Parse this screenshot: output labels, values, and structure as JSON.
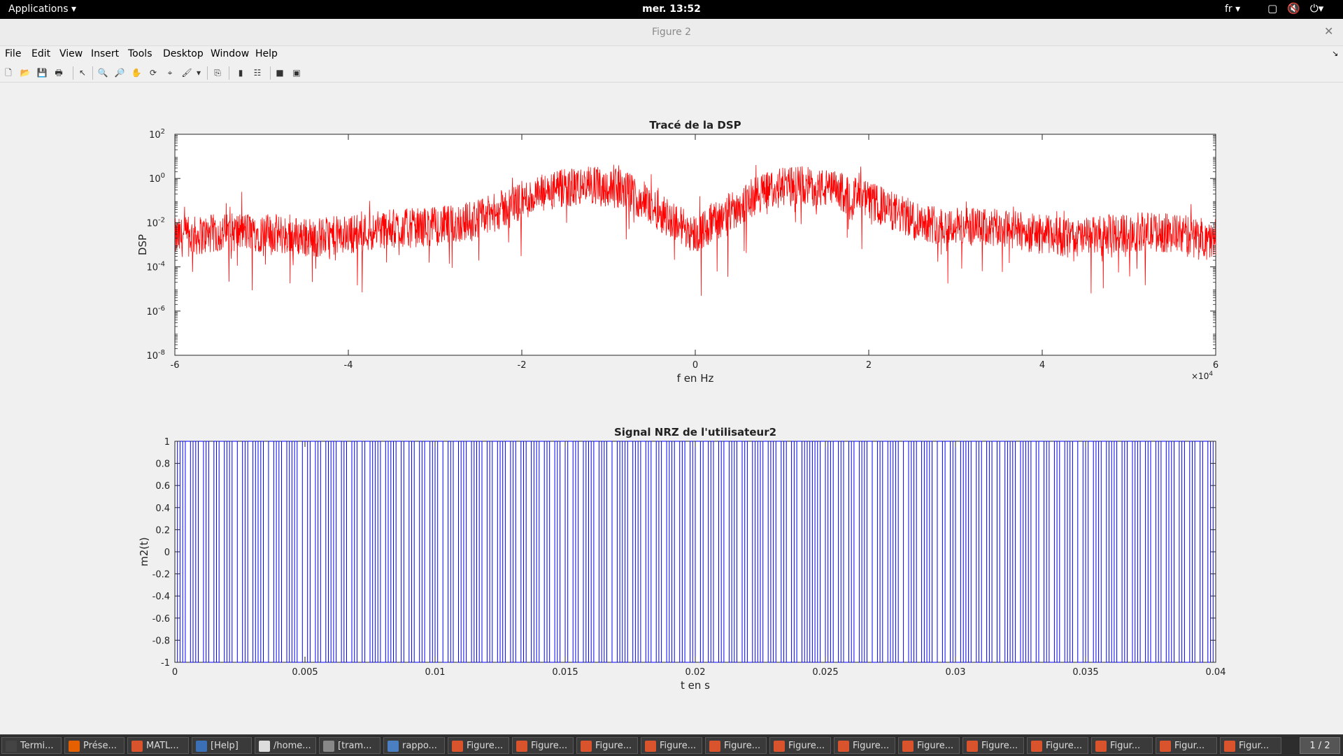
{
  "topbar": {
    "applications_label": "Applications",
    "clock": "mer. 13:52",
    "language": "fr"
  },
  "window": {
    "title": "Figure 2"
  },
  "menu": [
    "File",
    "Edit",
    "View",
    "Insert",
    "Tools",
    "Desktop",
    "Window",
    "Help"
  ],
  "toolbar_icons": [
    "new-figure-icon",
    "open-file-icon",
    "save-icon",
    "print-icon",
    "pointer-icon",
    "zoom-in-icon",
    "zoom-out-icon",
    "pan-icon",
    "rotate-icon",
    "data-cursor-icon",
    "brush-icon",
    "link-icon",
    "colorbar-icon",
    "legend-icon",
    "hide-plot-tools-icon",
    "show-plot-tools-icon"
  ],
  "chart_data": [
    {
      "type": "line",
      "title": "Tracé de la DSP",
      "xlabel": "f en Hz",
      "ylabel": "DSP",
      "xlim": [
        -60000,
        60000
      ],
      "ylim": [
        1e-08,
        100
      ],
      "yscale": "log",
      "x_exponent_label": "×10^4",
      "xticks": [
        -6,
        -4,
        -2,
        0,
        2,
        4,
        6
      ],
      "yticks": [
        "10^2",
        "10^0",
        "10^-2",
        "10^-4",
        "10^-6",
        "10^-8"
      ],
      "color": "#ff0000",
      "series": [
        {
          "x": [
            -60000,
            -56000,
            -52000,
            -48000,
            -44000,
            -40000,
            -36000,
            -32000,
            -28000,
            -24000,
            -20000,
            -16000,
            -12000,
            -8000,
            -4000,
            0,
            4000,
            8000,
            12000,
            16000,
            20000,
            24000,
            28000,
            32000,
            36000,
            40000,
            44000,
            48000,
            52000,
            56000,
            60000
          ],
          "values": [
            0.002,
            0.003,
            0.004,
            0.003,
            0.002,
            0.003,
            0.005,
            0.006,
            0.008,
            0.02,
            0.1,
            0.3,
            0.5,
            0.3,
            0.03,
            0.003,
            0.03,
            0.3,
            0.5,
            0.3,
            0.1,
            0.02,
            0.008,
            0.006,
            0.005,
            0.003,
            0.002,
            0.003,
            0.004,
            0.003,
            0.002
          ]
        }
      ]
    },
    {
      "type": "line",
      "title": "Signal NRZ de l'utilisateur2",
      "xlabel": "t en s",
      "ylabel": "m2(t)",
      "xlim": [
        0,
        0.04
      ],
      "ylim": [
        -1,
        1
      ],
      "xticks": [
        "0",
        "0.005",
        "0.01",
        "0.015",
        "0.02",
        "0.025",
        "0.03",
        "0.035",
        "0.04"
      ],
      "yticks": [
        "1",
        "0.8",
        "0.6",
        "0.4",
        "0.2",
        "0",
        "-0.2",
        "-0.4",
        "-0.6",
        "-0.8",
        "-1"
      ],
      "color": "#0000ff",
      "step": true,
      "bit_period": 0.0001,
      "series": [
        {
          "pattern_bits": "1010110101101001011010110010110101001101011010100110110100101011010010110110101001010110110100101101011001011010110101001011010110100101101011010010110110100101011010110010101101011010010110101101001011011010010110101101001010110101101001011010"
        }
      ]
    }
  ],
  "taskbar": {
    "items": [
      {
        "label": "Termi...",
        "icon": "terminal-icon",
        "color": "#444444"
      },
      {
        "label": "Prése...",
        "icon": "firefox-icon",
        "color": "#e66000"
      },
      {
        "label": "MATL...",
        "icon": "matlab-icon",
        "color": "#d9532c"
      },
      {
        "label": "[Help]",
        "icon": "help-icon",
        "color": "#3b6fb6"
      },
      {
        "label": "/home...",
        "icon": "editor-icon",
        "color": "#dddddd"
      },
      {
        "label": "[tram...",
        "icon": "file-manager-icon",
        "color": "#888888"
      },
      {
        "label": "rappo...",
        "icon": "document-icon",
        "color": "#4a7fc1"
      },
      {
        "label": "Figure...",
        "icon": "matlab-figure-icon",
        "color": "#d9532c"
      },
      {
        "label": "Figure...",
        "icon": "matlab-figure-icon",
        "color": "#d9532c"
      },
      {
        "label": "Figure...",
        "icon": "matlab-figure-icon",
        "color": "#d9532c"
      },
      {
        "label": "Figure...",
        "icon": "matlab-figure-icon",
        "color": "#d9532c"
      },
      {
        "label": "Figure...",
        "icon": "matlab-figure-icon",
        "color": "#d9532c"
      },
      {
        "label": "Figure...",
        "icon": "matlab-figure-icon",
        "color": "#d9532c"
      },
      {
        "label": "Figure...",
        "icon": "matlab-figure-icon",
        "color": "#d9532c"
      },
      {
        "label": "Figure...",
        "icon": "matlab-figure-icon",
        "color": "#d9532c"
      },
      {
        "label": "Figure...",
        "icon": "matlab-figure-icon",
        "color": "#d9532c"
      },
      {
        "label": "Figure...",
        "icon": "matlab-figure-icon",
        "color": "#d9532c"
      },
      {
        "label": "Figur...",
        "icon": "matlab-figure-icon",
        "color": "#d9532c"
      },
      {
        "label": "Figur...",
        "icon": "matlab-figure-icon",
        "color": "#d9532c"
      },
      {
        "label": "Figur...",
        "icon": "matlab-figure-icon",
        "color": "#d9532c"
      }
    ],
    "workspace_pager": "1 / 2"
  }
}
